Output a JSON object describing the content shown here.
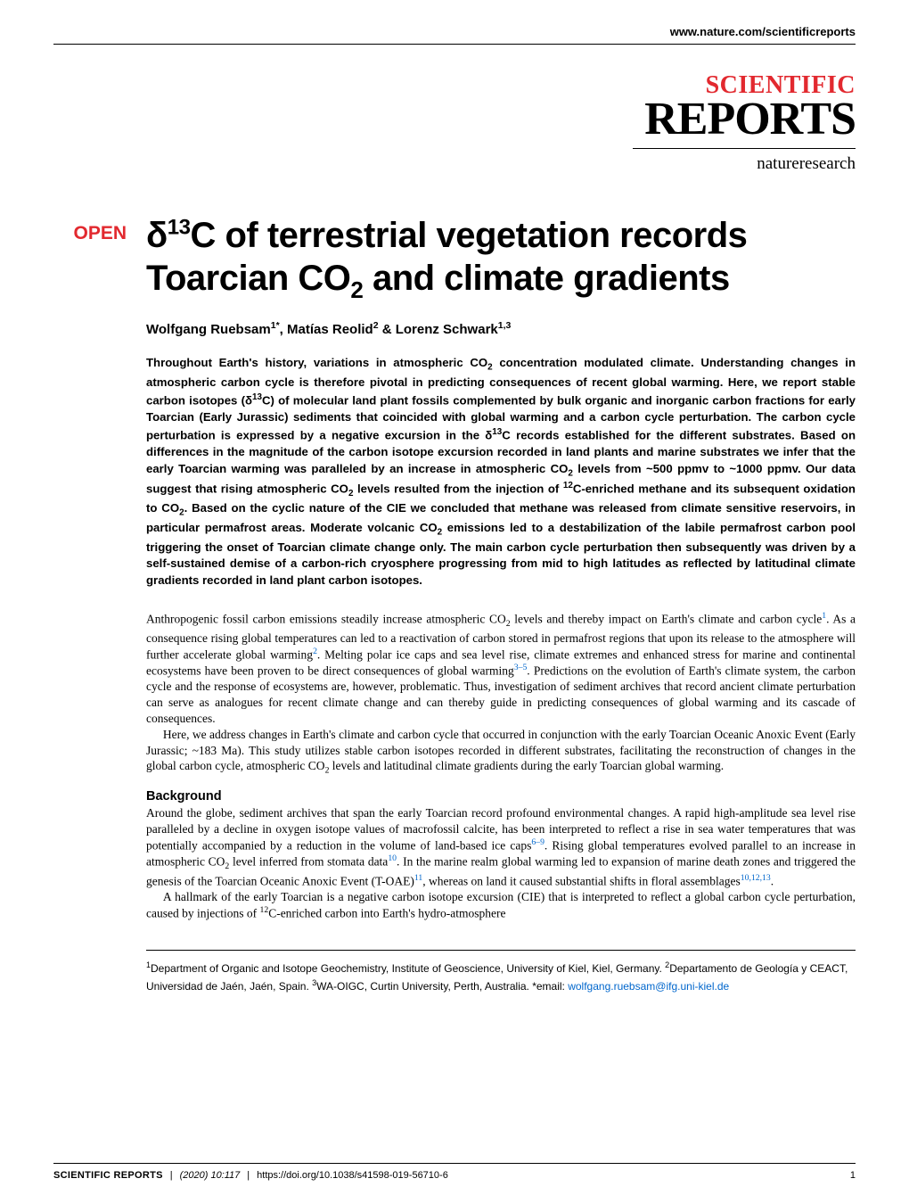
{
  "header": {
    "url": "www.nature.com/scientificreports",
    "logo_top": "SCIENTIFIC",
    "logo_bottom": "REPORTS",
    "logo_sub": "natureresearch",
    "accent_color": "#e2292f"
  },
  "article": {
    "open_badge": "OPEN",
    "title_html": "δ<sup>13</sup>C of terrestrial vegetation records Toarcian CO<sub>2</sub> and climate gradients",
    "authors_html": "Wolfgang Ruebsam<sup>1*</sup>, Matías Reolid<sup>2</sup> & Lorenz Schwark<sup>1,3</sup>",
    "abstract_html": "Throughout Earth's history, variations in atmospheric CO<sub>2</sub> concentration modulated climate. Understanding changes in atmospheric carbon cycle is therefore pivotal in predicting consequences of recent global warming. Here, we report stable carbon isotopes (δ<sup>13</sup>C) of molecular land plant fossils complemented by bulk organic and inorganic carbon fractions for early Toarcian (Early Jurassic) sediments that coincided with global warming and a carbon cycle perturbation. The carbon cycle perturbation is expressed by a negative excursion in the δ<sup>13</sup>C records established for the different substrates. Based on differences in the magnitude of the carbon isotope excursion recorded in land plants and marine substrates we infer that the early Toarcian warming was paralleled by an increase in atmospheric CO<sub>2</sub> levels from ~500 ppmv to ~1000 ppmv. Our data suggest that rising atmospheric CO<sub>2</sub> levels resulted from the injection of <sup>12</sup>C-enriched methane and its subsequent oxidation to CO<sub>2</sub>. Based on the cyclic nature of the CIE we concluded that methane was released from climate sensitive reservoirs, in particular permafrost areas. Moderate volcanic CO<sub>2</sub> emissions led to a destabilization of the labile permafrost carbon pool triggering the onset of Toarcian climate change only. The main carbon cycle perturbation then subsequently was driven by a self-sustained demise of a carbon-rich cryosphere progressing from mid to high latitudes as reflected by latitudinal climate gradients recorded in land plant carbon isotopes.",
    "body_p1_html": "Anthropogenic fossil carbon emissions steadily increase atmospheric CO<sub>2</sub> levels and thereby impact on Earth's climate and carbon cycle<span class='ref-link'>1</span>. As a consequence rising global temperatures can led to a reactivation of carbon stored in permafrost regions that upon its release to the atmosphere will further accelerate global warming<span class='ref-link'>2</span>. Melting polar ice caps and sea level rise, climate extremes and enhanced stress for marine and continental ecosystems have been proven to be direct consequences of global warming<span class='ref-link'>3–5</span>. Predictions on the evolution of Earth's climate system, the carbon cycle and the response of ecosystems are, however, problematic. Thus, investigation of sediment archives that record ancient climate perturbation can serve as analogues for recent climate change and can thereby guide in predicting consequences of global warming and its cascade of consequences.",
    "body_p2_html": "Here, we address changes in Earth's climate and carbon cycle that occurred in conjunction with the early Toarcian Oceanic Anoxic Event (Early Jurassic; ~183 Ma). This study utilizes stable carbon isotopes recorded in different substrates, facilitating the reconstruction of changes in the global carbon cycle, atmospheric CO<sub>2</sub> levels and latitudinal climate gradients during the early Toarcian global warming.",
    "section_heading": "Background",
    "body_p3_html": "Around the globe, sediment archives that span the early Toarcian record profound environmental changes. A rapid high-amplitude sea level rise paralleled by a decline in oxygen isotope values of macrofossil calcite, has been interpreted to reflect a rise in sea water temperatures that was potentially accompanied by a reduction in the volume of land-based ice caps<span class='ref-link'>6–9</span>. Rising global temperatures evolved parallel to an increase in atmospheric CO<sub>2</sub> level inferred from stomata data<span class='ref-link'>10</span>. In the marine realm global warming led to expansion of marine death zones and triggered the genesis of the Toarcian Oceanic Anoxic Event (T-OAE)<span class='ref-link'>11</span>, whereas on land it caused substantial shifts in floral assemblages<span class='ref-link'>10,12,13</span>.",
    "body_p4_html": "A hallmark of the early Toarcian is a negative carbon isotope excursion (CIE) that is interpreted to reflect a global carbon cycle perturbation, caused by injections of <sup>12</sup>C-enriched carbon into Earth's hydro-atmosphere",
    "affiliations_html": "<sup>1</sup>Department of Organic and Isotope Geochemistry, Institute of Geoscience, University of Kiel, Kiel, Germany. <sup>2</sup>Departamento de Geología y CEACT, Universidad de Jaén, Jaén, Spain. <sup>3</sup>WA-OIGC, Curtin University, Perth, Australia. *email: <span class='email-link'>wolfgang.ruebsam@ifg.uni-kiel.de</span>"
  },
  "footer": {
    "journal": "SCIENTIFIC REPORTS",
    "citation": "(2020) 10:117",
    "doi": "https://doi.org/10.1038/s41598-019-56710-6",
    "page": "1"
  }
}
